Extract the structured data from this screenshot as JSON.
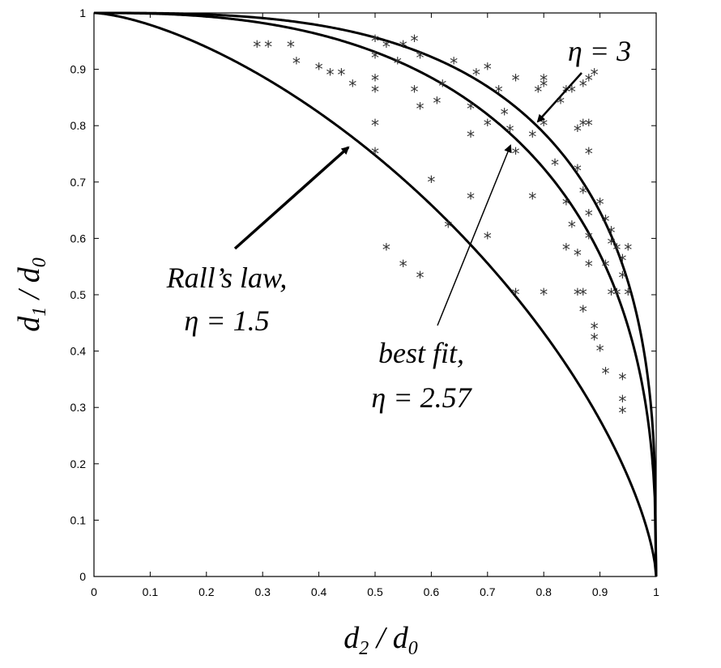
{
  "chart_data": {
    "type": "scatter",
    "xlabel": {
      "base": "d",
      "sub": "2",
      "sep": " / ",
      "base2": "d",
      "sub2": "0"
    },
    "ylabel": {
      "base": "d",
      "sub": "1",
      "sep": " / ",
      "base2": "d",
      "sub2": "0"
    },
    "xlim": [
      0,
      1
    ],
    "ylim": [
      0,
      1
    ],
    "xticks": [
      "0",
      "0.1",
      "0.2",
      "0.3",
      "0.4",
      "0.5",
      "0.6",
      "0.7",
      "0.8",
      "0.9",
      "1"
    ],
    "yticks": [
      "0",
      "0.1",
      "0.2",
      "0.3",
      "0.4",
      "0.5",
      "0.6",
      "0.7",
      "0.8",
      "0.9",
      "1"
    ],
    "grid": false,
    "curves": [
      {
        "eta": 1.5,
        "style": "solid"
      },
      {
        "eta": 2.57,
        "style": "solid"
      },
      {
        "eta": 3,
        "style": "solid"
      }
    ],
    "points": [
      [
        0.29,
        0.94
      ],
      [
        0.31,
        0.94
      ],
      [
        0.35,
        0.94
      ],
      [
        0.36,
        0.91
      ],
      [
        0.4,
        0.9
      ],
      [
        0.42,
        0.89
      ],
      [
        0.44,
        0.89
      ],
      [
        0.46,
        0.87
      ],
      [
        0.5,
        0.95
      ],
      [
        0.5,
        0.92
      ],
      [
        0.5,
        0.88
      ],
      [
        0.5,
        0.86
      ],
      [
        0.5,
        0.8
      ],
      [
        0.5,
        0.75
      ],
      [
        0.52,
        0.94
      ],
      [
        0.54,
        0.91
      ],
      [
        0.55,
        0.94
      ],
      [
        0.57,
        0.95
      ],
      [
        0.58,
        0.92
      ],
      [
        0.57,
        0.86
      ],
      [
        0.58,
        0.83
      ],
      [
        0.6,
        0.7
      ],
      [
        0.61,
        0.84
      ],
      [
        0.62,
        0.87
      ],
      [
        0.63,
        0.62
      ],
      [
        0.64,
        0.91
      ],
      [
        0.52,
        0.58
      ],
      [
        0.55,
        0.55
      ],
      [
        0.58,
        0.53
      ],
      [
        0.67,
        0.83
      ],
      [
        0.67,
        0.78
      ],
      [
        0.67,
        0.67
      ],
      [
        0.68,
        0.89
      ],
      [
        0.7,
        0.9
      ],
      [
        0.7,
        0.8
      ],
      [
        0.7,
        0.6
      ],
      [
        0.72,
        0.86
      ],
      [
        0.73,
        0.82
      ],
      [
        0.74,
        0.79
      ],
      [
        0.75,
        0.75
      ],
      [
        0.75,
        0.88
      ],
      [
        0.75,
        0.5
      ],
      [
        0.78,
        0.78
      ],
      [
        0.78,
        0.67
      ],
      [
        0.79,
        0.86
      ],
      [
        0.8,
        0.88
      ],
      [
        0.8,
        0.87
      ],
      [
        0.8,
        0.8
      ],
      [
        0.8,
        0.5
      ],
      [
        0.82,
        0.73
      ],
      [
        0.83,
        0.84
      ],
      [
        0.84,
        0.86
      ],
      [
        0.84,
        0.66
      ],
      [
        0.84,
        0.58
      ],
      [
        0.85,
        0.62
      ],
      [
        0.85,
        0.86
      ],
      [
        0.86,
        0.79
      ],
      [
        0.86,
        0.72
      ],
      [
        0.86,
        0.57
      ],
      [
        0.86,
        0.5
      ],
      [
        0.87,
        0.87
      ],
      [
        0.87,
        0.8
      ],
      [
        0.87,
        0.68
      ],
      [
        0.87,
        0.5
      ],
      [
        0.87,
        0.47
      ],
      [
        0.88,
        0.88
      ],
      [
        0.88,
        0.8
      ],
      [
        0.88,
        0.75
      ],
      [
        0.88,
        0.64
      ],
      [
        0.88,
        0.6
      ],
      [
        0.88,
        0.55
      ],
      [
        0.89,
        0.89
      ],
      [
        0.89,
        0.44
      ],
      [
        0.89,
        0.42
      ],
      [
        0.9,
        0.4
      ],
      [
        0.9,
        0.66
      ],
      [
        0.91,
        0.63
      ],
      [
        0.91,
        0.55
      ],
      [
        0.91,
        0.36
      ],
      [
        0.92,
        0.61
      ],
      [
        0.92,
        0.59
      ],
      [
        0.92,
        0.5
      ],
      [
        0.93,
        0.58
      ],
      [
        0.93,
        0.5
      ],
      [
        0.94,
        0.56
      ],
      [
        0.94,
        0.53
      ],
      [
        0.94,
        0.31
      ],
      [
        0.94,
        0.29
      ],
      [
        0.94,
        0.35
      ],
      [
        0.95,
        0.58
      ],
      [
        0.95,
        0.5
      ]
    ],
    "annotations": [
      {
        "lines": [
          "Rall’s law,",
          "η = 1.5"
        ],
        "arrow_eta": 1.5
      },
      {
        "lines": [
          "best fit,",
          "η = 2.57"
        ],
        "arrow_eta": 2.57
      },
      {
        "lines": [
          "η = 3"
        ],
        "arrow_eta": 3
      }
    ]
  }
}
